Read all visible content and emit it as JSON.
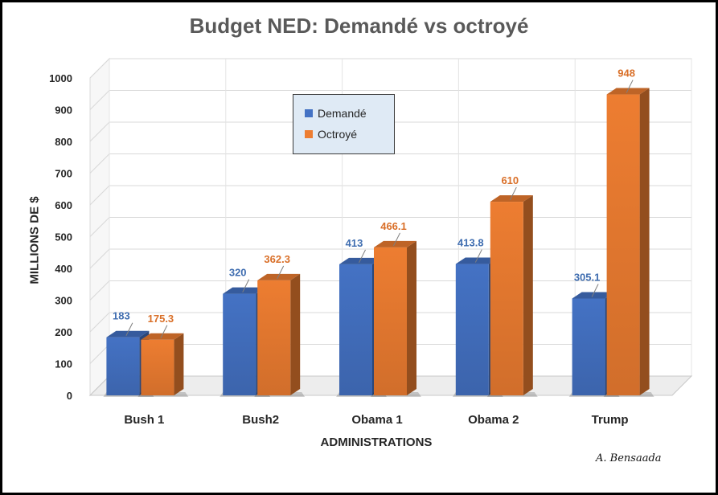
{
  "chart_data": {
    "type": "bar",
    "title": "Budget NED: Demandé vs octroyé",
    "xlabel": "ADMINISTRATIONS",
    "ylabel": "MILLIONS DE $",
    "categories": [
      "Bush 1",
      "Bush2",
      "Obama 1",
      "Obama 2",
      "Trump"
    ],
    "series": [
      {
        "name": "Demandé",
        "values": [
          183,
          320,
          413,
          413.8,
          305.1
        ],
        "labels": [
          "183",
          "320",
          "413",
          "413.8",
          "305.1"
        ],
        "color": "#4472c4"
      },
      {
        "name": "Octroyé",
        "values": [
          175.3,
          362.3,
          466.1,
          610,
          948
        ],
        "labels": [
          "175.3",
          "362.3",
          "466.1",
          "610",
          "948"
        ],
        "color": "#ed7d31"
      }
    ],
    "ylim": [
      0,
      1000
    ],
    "yticks": [
      "0",
      "100",
      "200",
      "300",
      "400",
      "500",
      "600",
      "700",
      "800",
      "900",
      "1000"
    ],
    "grid": true,
    "legend_position": "top-center",
    "style": "3d-column"
  },
  "signature": "A. Bensaada"
}
